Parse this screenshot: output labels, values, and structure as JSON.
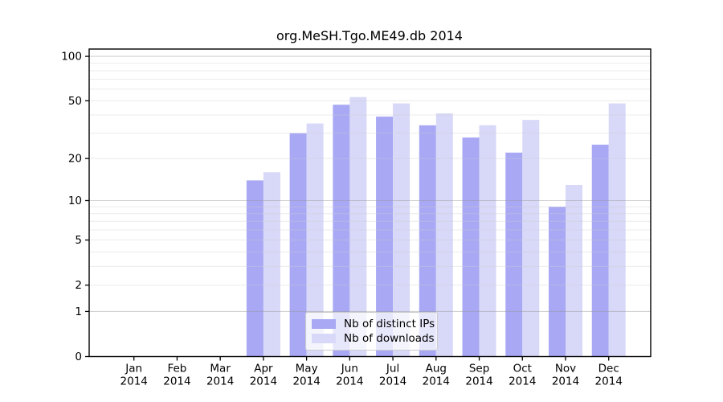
{
  "chart_data": {
    "type": "bar",
    "title": "org.MeSH.Tgo.ME49.db 2014",
    "xlabel": "",
    "ylabel": "",
    "y_scale": "log1p",
    "ylim": [
      0,
      111
    ],
    "y_ticks": [
      0,
      1,
      2,
      5,
      10,
      20,
      50,
      100
    ],
    "categories": [
      "Jan",
      "Feb",
      "Mar",
      "Apr",
      "May",
      "Jun",
      "Jul",
      "Aug",
      "Sep",
      "Oct",
      "Nov",
      "Dec"
    ],
    "year_label": "2014",
    "series": [
      {
        "name": "Nb of distinct IPs",
        "key": "distinct-ips",
        "color": "#a8a8f5",
        "values": [
          0,
          0,
          0,
          14,
          30,
          47,
          39,
          34,
          28,
          22,
          9,
          25
        ]
      },
      {
        "name": "Nb of downloads",
        "key": "downloads",
        "color": "#d8d8f8",
        "values": [
          0,
          0,
          0,
          16,
          35,
          53,
          48,
          41,
          34,
          37,
          13,
          48
        ]
      }
    ],
    "grid": {
      "minor": [
        2,
        3,
        4,
        5,
        6,
        7,
        8,
        9,
        20,
        30,
        40,
        50,
        60,
        70,
        80,
        90
      ],
      "major": [
        1,
        10,
        100
      ],
      "minor_color": "rgba(205,205,205,0.40)",
      "major_color": "rgba(150,150,150,0.45)"
    },
    "legend_position": "bottom-center",
    "axis_color": "#000000"
  }
}
